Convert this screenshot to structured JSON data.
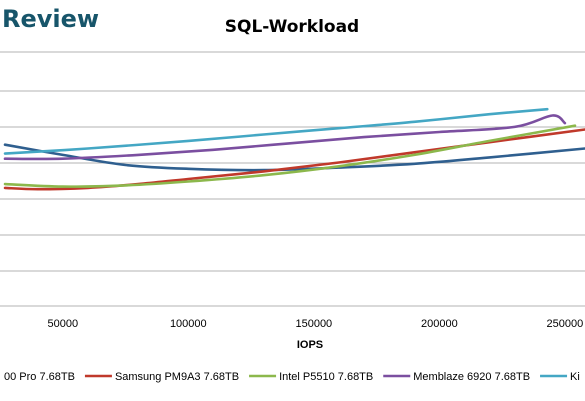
{
  "brand": {
    "text": "Review"
  },
  "chart_data": {
    "type": "line",
    "title": "SQL-Workload",
    "xlabel": "IOPS",
    "ylabel": "",
    "x_ticks": [
      50000,
      100000,
      150000,
      200000,
      250000
    ],
    "x_tick_labels": [
      "50000",
      "100000",
      "150000",
      "200000",
      "250000"
    ],
    "xlim": [
      25000,
      258000
    ],
    "ylim": [
      0,
      10
    ],
    "grid": "horizontal",
    "legend_position": "bottom",
    "series": [
      {
        "name": "00 Pro 7.68TB",
        "color": "#2f5f8f",
        "x": [
          27000,
          50000,
          75000,
          100000,
          130000,
          160000,
          190000,
          220000,
          258000
        ],
        "y": [
          6.35,
          5.95,
          5.55,
          5.4,
          5.35,
          5.45,
          5.6,
          5.85,
          6.2
        ]
      },
      {
        "name": "Samsung PM9A3 7.68TB",
        "color": "#c0392b",
        "x": [
          27000,
          40000,
          60000,
          80000,
          100000,
          130000,
          160000,
          190000,
          220000,
          258000
        ],
        "y": [
          4.65,
          4.6,
          4.65,
          4.8,
          5.0,
          5.3,
          5.65,
          6.05,
          6.45,
          6.95
        ]
      },
      {
        "name": "Intel P5510 7.68TB",
        "color": "#8cb84c",
        "x": [
          27000,
          50000,
          75000,
          100000,
          130000,
          160000,
          190000,
          220000,
          254000
        ],
        "y": [
          4.8,
          4.7,
          4.75,
          4.9,
          5.15,
          5.5,
          5.95,
          6.5,
          7.1
        ]
      },
      {
        "name": "Memblaze 6920 7.68TB",
        "color": "#7b4fa0",
        "x": [
          27000,
          50000,
          80000,
          110000,
          140000,
          170000,
          200000,
          230000,
          245000,
          250000
        ],
        "y": [
          5.8,
          5.8,
          5.95,
          6.15,
          6.4,
          6.65,
          6.85,
          7.05,
          7.5,
          7.2
        ]
      },
      {
        "name": "Ki",
        "color": "#44a7c4",
        "x": [
          27000,
          60000,
          100000,
          130000,
          160000,
          190000,
          220000,
          243000
        ],
        "y": [
          6.0,
          6.2,
          6.5,
          6.75,
          7.0,
          7.25,
          7.55,
          7.75
        ]
      }
    ]
  }
}
